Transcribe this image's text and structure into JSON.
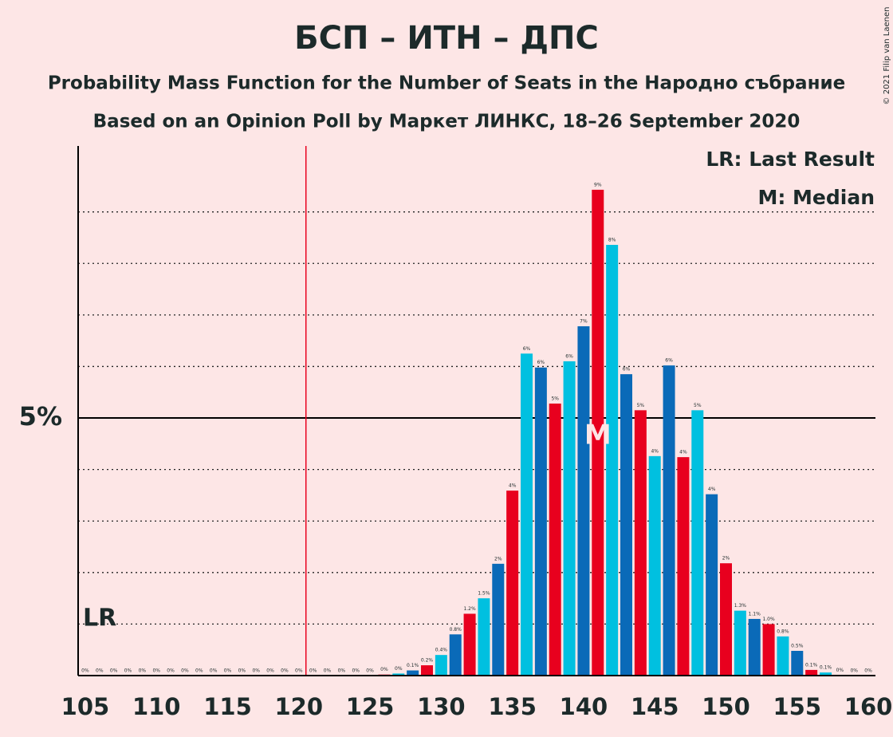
{
  "chart_data": {
    "type": "bar",
    "title": "БСП – ИТН – ДПС",
    "subtitle": "Probability Mass Function for the Number of Seats in the Народно събрание",
    "subtitle2": "Based on an Opinion Poll by Маркет ЛИНКС, 18–26 September 2020",
    "copyright": "© 2021 Filip van Laenen",
    "x": [
      105,
      106,
      107,
      108,
      109,
      110,
      111,
      112,
      113,
      114,
      115,
      116,
      117,
      118,
      119,
      120,
      121,
      122,
      123,
      124,
      125,
      126,
      127,
      128,
      129,
      130,
      131,
      132,
      133,
      134,
      135,
      136,
      137,
      138,
      139,
      140,
      141,
      142,
      143,
      144,
      145,
      146,
      147,
      148,
      149,
      150,
      151,
      152,
      153,
      154,
      155,
      156,
      157,
      158,
      159,
      160
    ],
    "values": [
      0,
      0,
      0,
      0,
      0,
      0,
      0,
      0,
      0,
      0,
      0,
      0,
      0,
      0,
      0,
      0,
      0,
      0,
      0,
      0,
      0,
      0.02,
      0.04,
      0.1,
      0.2,
      0.4,
      0.8,
      1.2,
      1.5,
      2.17,
      3.59,
      6.25,
      5.98,
      5.28,
      6.1,
      6.78,
      9.43,
      8.36,
      5.85,
      5.15,
      4.26,
      6.02,
      4.24,
      5.15,
      3.52,
      2.18,
      1.26,
      1.1,
      1.0,
      0.76,
      0.48,
      0.11,
      0.06,
      0.01,
      0,
      0
    ],
    "value_labels": [
      "0%",
      "0%",
      "0%",
      "0%",
      "0%",
      "0%",
      "0%",
      "0%",
      "0%",
      "0%",
      "0%",
      "0%",
      "0%",
      "0%",
      "0%",
      "0%",
      "0%",
      "0%",
      "0%",
      "0%",
      "0%",
      "0%",
      "0%",
      "0.1%",
      "0.2%",
      "0.4%",
      "0.8%",
      "1.2%",
      "1.5%",
      "2%",
      "4%",
      "6%",
      "6%",
      "5%",
      "6%",
      "7%",
      "9%",
      "8%",
      "6%",
      "5%",
      "4%",
      "6%",
      "4%",
      "5%",
      "4%",
      "2%",
      "1.3%",
      "1.1%",
      "1.0%",
      "0.8%",
      "0.5%",
      "0.1%",
      "0.1%",
      "0%",
      "0%",
      "0%"
    ],
    "colors": [
      "#e8001e",
      "#00c0e0",
      "#0a6ab8",
      "#e8001e",
      "#00c0e0",
      "#0a6ab8",
      "#e8001e",
      "#00c0e0",
      "#0a6ab8",
      "#e8001e",
      "#00c0e0",
      "#0a6ab8",
      "#e8001e",
      "#00c0e0",
      "#0a6ab8",
      "#e8001e",
      "#00c0e0",
      "#0a6ab8",
      "#e8001e",
      "#00c0e0",
      "#0a6ab8",
      "#e8001e",
      "#00c0e0",
      "#0a6ab8",
      "#e8001e",
      "#00c0e0",
      "#0a6ab8",
      "#e8001e",
      "#00c0e0",
      "#0a6ab8",
      "#e8001e",
      "#00c0e0",
      "#0a6ab8",
      "#e8001e",
      "#00c0e0",
      "#0a6ab8",
      "#e8001e",
      "#00c0e0",
      "#0a6ab8",
      "#e8001e",
      "#00c0e0",
      "#0a6ab8",
      "#e8001e",
      "#00c0e0",
      "#0a6ab8",
      "#e8001e",
      "#00c0e0",
      "#0a6ab8",
      "#e8001e",
      "#00c0e0",
      "#0a6ab8",
      "#e8001e",
      "#00c0e0",
      "#0a6ab8",
      "#e8001e",
      "#00c0e0"
    ],
    "xlim": [
      104.5,
      160.5
    ],
    "xticks": [
      105,
      110,
      115,
      120,
      125,
      130,
      135,
      140,
      145,
      150,
      155,
      160
    ],
    "ylim": [
      0,
      10.28
    ],
    "yticks": [
      {
        "value": 5,
        "label": "5%"
      }
    ],
    "minor_yticks": [
      1,
      2,
      3,
      4,
      6,
      7,
      8,
      9
    ],
    "last_result": 121,
    "last_result_label": "LR",
    "last_result_legend": "LR: Last Result",
    "median": 141,
    "median_label": "M",
    "median_legend": "M: Median"
  }
}
